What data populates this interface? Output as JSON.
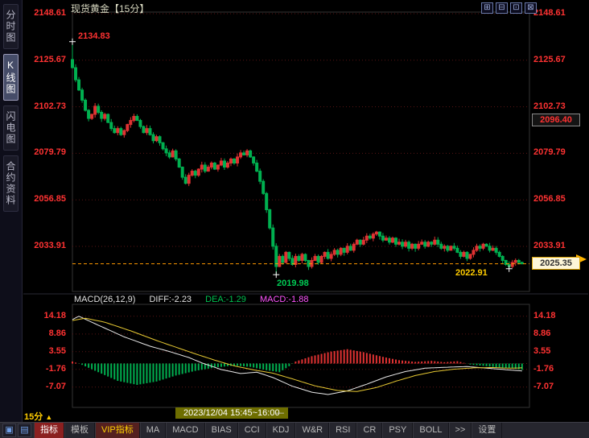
{
  "title": {
    "text": "现货黄金【15分】"
  },
  "header": {
    "icons": [
      {
        "name": "layout-grid-icon",
        "glyph": "⊞"
      },
      {
        "name": "layout-hsplit-icon",
        "glyph": "⊟"
      },
      {
        "name": "layout-single-icon",
        "glyph": "⊡"
      },
      {
        "name": "layout-close-icon",
        "glyph": "⊠"
      }
    ]
  },
  "sidebar": {
    "items": [
      {
        "key": "time-chart",
        "label": "分时图",
        "selected": false
      },
      {
        "key": "kline-chart",
        "label": "K线图",
        "selected": true
      },
      {
        "key": "flash-chart",
        "label": "闪电图",
        "selected": false
      },
      {
        "key": "contract-info",
        "label": "合约资料",
        "selected": false
      }
    ]
  },
  "price_axis": {
    "prev_close_label": "2096.40",
    "current_price_label": "2025.35"
  },
  "annotations": {
    "high": "2134.83",
    "low": "2019.98",
    "late_low": "2022.91"
  },
  "macd": {
    "header": {
      "name": "MACD(26,12,9)",
      "diff": "DIFF:-2.23",
      "dea": "DEA:-1.29",
      "macd": "MACD:-1.88"
    }
  },
  "time_axis": {
    "label": "2023/12/04 15:45~16:00",
    "dash": "—"
  },
  "footer": {
    "timeframe": "15分",
    "timeframe_arrow": "▲",
    "icons": [
      {
        "name": "window-icon",
        "glyph": "▣"
      },
      {
        "name": "panel-icon",
        "glyph": "▤"
      }
    ],
    "tabs": [
      {
        "key": "indicator",
        "label": "指标",
        "style": "active"
      },
      {
        "key": "template",
        "label": "模板",
        "style": ""
      },
      {
        "key": "vip-indicator",
        "label": "VIP指标",
        "style": "vip"
      },
      {
        "key": "ma",
        "label": "MA",
        "style": ""
      },
      {
        "key": "macd",
        "label": "MACD",
        "style": ""
      },
      {
        "key": "bias",
        "label": "BIAS",
        "style": ""
      },
      {
        "key": "cci",
        "label": "CCI",
        "style": ""
      },
      {
        "key": "kdj",
        "label": "KDJ",
        "style": ""
      },
      {
        "key": "wr",
        "label": "W&R",
        "style": ""
      },
      {
        "key": "rsi",
        "label": "RSI",
        "style": ""
      },
      {
        "key": "cr",
        "label": "CR",
        "style": ""
      },
      {
        "key": "psy",
        "label": "PSY",
        "style": ""
      },
      {
        "key": "boll",
        "label": "BOLL",
        "style": ""
      },
      {
        "key": "more",
        "label": ">>",
        "style": ""
      },
      {
        "key": "settings",
        "label": "设置",
        "style": ""
      }
    ]
  },
  "colors": {
    "up": "#e03232",
    "down": "#00b050",
    "axis_text": "#ff3232",
    "grid": "#5a1414",
    "dashed_line": "#ff9900",
    "diff_line": "#e8e8e8",
    "dea_line": "#e6c832",
    "panel_border": "#333333",
    "marker": "#ffffff",
    "arrow": "#ffb400"
  },
  "chart_data": {
    "type": "candlestick",
    "title": "现货黄金【15分】",
    "instrument": "现货黄金",
    "interval": "15分",
    "x_tick_label": "2023/12/04 15:45~16:00",
    "price_panel": {
      "ylabels": [
        2148.61,
        2125.67,
        2102.73,
        2079.79,
        2056.85,
        2033.91
      ],
      "ylim": [
        2011.7,
        2149.4
      ],
      "grid": "dotted",
      "current_price": 2025.35,
      "prev_settle": 2096.4,
      "first_open": 2126,
      "markers": {
        "high": {
          "index": 0,
          "price": 2134.83
        },
        "low": {
          "index": 63,
          "price": 2019.98
        },
        "late_low": {
          "index": 135,
          "price": 2022.91
        }
      },
      "closes": [
        2122,
        2116,
        2111,
        2106,
        2101,
        2097,
        2099,
        2103,
        2100,
        2097,
        2099,
        2095,
        2092,
        2090,
        2092,
        2089,
        2091,
        2094,
        2096,
        2098,
        2096,
        2093,
        2090,
        2092,
        2089,
        2086,
        2088,
        2085,
        2082,
        2080,
        2078,
        2081,
        2077,
        2073,
        2068,
        2065,
        2069,
        2071,
        2069,
        2072,
        2074,
        2071,
        2073,
        2075,
        2072,
        2074,
        2076,
        2073,
        2075,
        2077,
        2075,
        2078,
        2080,
        2079,
        2081,
        2078,
        2075,
        2071,
        2066,
        2060,
        2052,
        2043,
        2034,
        2024,
        2029,
        2026,
        2031,
        2028,
        2025,
        2029,
        2027,
        2030,
        2027,
        2024,
        2027,
        2029,
        2026,
        2029,
        2031,
        2028,
        2030,
        2032,
        2030,
        2033,
        2031,
        2034,
        2032,
        2035,
        2037,
        2035,
        2037,
        2039,
        2038,
        2040,
        2041,
        2039,
        2037,
        2038,
        2036,
        2038,
        2035,
        2036,
        2034,
        2036,
        2033,
        2035,
        2033,
        2035,
        2036,
        2034,
        2036,
        2035,
        2037,
        2035,
        2033,
        2034,
        2032,
        2034,
        2033,
        2031,
        2029,
        2031,
        2028,
        2030,
        2032,
        2034,
        2033,
        2035,
        2034,
        2032,
        2033,
        2031,
        2029,
        2027,
        2025,
        2024,
        2026,
        2027,
        2026,
        2025.35
      ]
    },
    "macd_panel": {
      "name": "MACD(26,12,9)",
      "ylabels": [
        14.18,
        8.86,
        3.55,
        -1.76,
        -7.07
      ],
      "diff_last": -2.23,
      "dea_last": -1.29,
      "macd_last": -1.88,
      "diff_keypoints": [
        [
          0,
          13.2
        ],
        [
          2,
          14.18
        ],
        [
          8,
          11.5
        ],
        [
          16,
          8.0
        ],
        [
          24,
          5.2
        ],
        [
          30,
          3.6
        ],
        [
          36,
          1.8
        ],
        [
          40,
          0.2
        ],
        [
          46,
          -1.8
        ],
        [
          52,
          -3.0
        ],
        [
          57,
          -2.6
        ],
        [
          62,
          -4.2
        ],
        [
          68,
          -6.8
        ],
        [
          74,
          -8.6
        ],
        [
          79,
          -9.3
        ],
        [
          85,
          -8.2
        ],
        [
          91,
          -6.2
        ],
        [
          97,
          -4.0
        ],
        [
          103,
          -2.4
        ],
        [
          109,
          -1.4
        ],
        [
          116,
          -1.1
        ],
        [
          122,
          -0.9
        ],
        [
          127,
          -1.3
        ],
        [
          132,
          -1.7
        ],
        [
          136,
          -2.0
        ],
        [
          139,
          -2.23
        ]
      ],
      "dea_keypoints": [
        [
          0,
          12.9
        ],
        [
          4,
          13.6
        ],
        [
          10,
          12.4
        ],
        [
          18,
          9.8
        ],
        [
          26,
          6.9
        ],
        [
          32,
          4.9
        ],
        [
          38,
          2.9
        ],
        [
          44,
          1.0
        ],
        [
          50,
          -0.7
        ],
        [
          56,
          -1.9
        ],
        [
          62,
          -2.9
        ],
        [
          68,
          -4.6
        ],
        [
          75,
          -6.7
        ],
        [
          82,
          -8.1
        ],
        [
          88,
          -8.4
        ],
        [
          94,
          -7.2
        ],
        [
          100,
          -5.3
        ],
        [
          106,
          -3.6
        ],
        [
          112,
          -2.4
        ],
        [
          118,
          -1.7
        ],
        [
          124,
          -1.3
        ],
        [
          130,
          -1.2
        ],
        [
          135,
          -1.4
        ],
        [
          139,
          -1.29
        ]
      ],
      "hist_keypoints": [
        [
          0,
          0.6
        ],
        [
          3,
          -0.4
        ],
        [
          8,
          -2.6
        ],
        [
          14,
          -5.2
        ],
        [
          20,
          -6.4
        ],
        [
          26,
          -5.4
        ],
        [
          32,
          -3.6
        ],
        [
          38,
          -2.2
        ],
        [
          44,
          -1.2
        ],
        [
          50,
          -0.6
        ],
        [
          55,
          -1.0
        ],
        [
          60,
          -2.0
        ],
        [
          64,
          -2.6
        ],
        [
          67,
          -0.8
        ],
        [
          69,
          0.6
        ],
        [
          74,
          2.2
        ],
        [
          80,
          3.6
        ],
        [
          85,
          4.3
        ],
        [
          90,
          3.4
        ],
        [
          96,
          2.0
        ],
        [
          101,
          1.0
        ],
        [
          106,
          0.5
        ],
        [
          111,
          0.8
        ],
        [
          115,
          0.4
        ],
        [
          119,
          0.7
        ],
        [
          123,
          -0.3
        ],
        [
          127,
          -0.7
        ],
        [
          131,
          -1.1
        ],
        [
          135,
          -1.4
        ],
        [
          139,
          -1.88
        ]
      ]
    }
  }
}
